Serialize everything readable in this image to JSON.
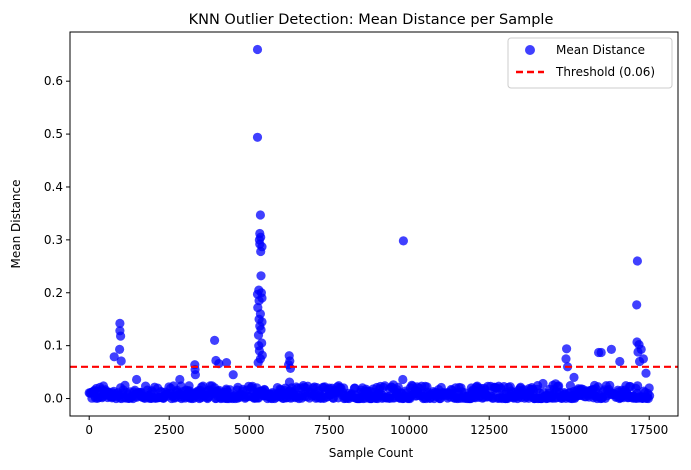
{
  "chart_data": {
    "type": "scatter",
    "title": "KNN Outlier Detection: Mean Distance per Sample",
    "xlabel": "Sample Count",
    "ylabel": "Mean Distance",
    "xlim": [
      -600,
      18400
    ],
    "ylim": [
      -0.033,
      0.693
    ],
    "xticks": [
      0,
      2500,
      5000,
      7500,
      10000,
      12500,
      15000,
      17500
    ],
    "xtick_labels": [
      "0",
      "2500",
      "5000",
      "7500",
      "10000",
      "12500",
      "15000",
      "17500"
    ],
    "yticks": [
      0.0,
      0.1,
      0.2,
      0.3,
      0.4,
      0.5,
      0.6
    ],
    "ytick_labels": [
      "0.0",
      "0.1",
      "0.2",
      "0.3",
      "0.4",
      "0.5",
      "0.6"
    ],
    "grid": false,
    "legend_position": "top-right",
    "series": [
      {
        "name": "Mean Distance",
        "kind": "scatter",
        "color": "#0000ff",
        "alpha": 0.75,
        "x_range": [
          0,
          17500
        ],
        "baseline_band": [
          0.0,
          0.025
        ],
        "outliers": [
          [
            960,
            0.142
          ],
          [
            960,
            0.128
          ],
          [
            980,
            0.118
          ],
          [
            950,
            0.093
          ],
          [
            1000,
            0.071
          ],
          [
            780,
            0.079
          ],
          [
            1480,
            0.036
          ],
          [
            2830,
            0.036
          ],
          [
            3300,
            0.064
          ],
          [
            3310,
            0.055
          ],
          [
            3320,
            0.045
          ],
          [
            3920,
            0.11
          ],
          [
            3960,
            0.072
          ],
          [
            4050,
            0.066
          ],
          [
            4290,
            0.068
          ],
          [
            4500,
            0.045
          ],
          [
            5260,
            0.66
          ],
          [
            5260,
            0.494
          ],
          [
            5350,
            0.347
          ],
          [
            5330,
            0.312
          ],
          [
            5360,
            0.305
          ],
          [
            5320,
            0.3
          ],
          [
            5330,
            0.292
          ],
          [
            5400,
            0.287
          ],
          [
            5360,
            0.278
          ],
          [
            5370,
            0.232
          ],
          [
            5300,
            0.205
          ],
          [
            5380,
            0.2
          ],
          [
            5260,
            0.197
          ],
          [
            5400,
            0.19
          ],
          [
            5310,
            0.185
          ],
          [
            5270,
            0.172
          ],
          [
            5350,
            0.16
          ],
          [
            5310,
            0.15
          ],
          [
            5400,
            0.145
          ],
          [
            5330,
            0.137
          ],
          [
            5370,
            0.13
          ],
          [
            5290,
            0.12
          ],
          [
            5390,
            0.105
          ],
          [
            5300,
            0.1
          ],
          [
            5320,
            0.09
          ],
          [
            5410,
            0.082
          ],
          [
            5350,
            0.075
          ],
          [
            5280,
            0.068
          ],
          [
            6250,
            0.081
          ],
          [
            6270,
            0.071
          ],
          [
            6230,
            0.064
          ],
          [
            6290,
            0.057
          ],
          [
            9820,
            0.298
          ],
          [
            9800,
            0.036
          ],
          [
            14920,
            0.094
          ],
          [
            14900,
            0.075
          ],
          [
            14950,
            0.06
          ],
          [
            15150,
            0.04
          ],
          [
            15920,
            0.087
          ],
          [
            16000,
            0.087
          ],
          [
            16320,
            0.093
          ],
          [
            16580,
            0.07
          ],
          [
            17130,
            0.26
          ],
          [
            17110,
            0.177
          ],
          [
            17120,
            0.107
          ],
          [
            17180,
            0.102
          ],
          [
            17250,
            0.093
          ],
          [
            17150,
            0.088
          ],
          [
            17320,
            0.075
          ],
          [
            17200,
            0.07
          ],
          [
            17400,
            0.048
          ]
        ]
      },
      {
        "name": "Threshold (0.06)",
        "kind": "hline",
        "y": 0.06,
        "color": "#ff0000",
        "linestyle": "dashed"
      }
    ]
  }
}
